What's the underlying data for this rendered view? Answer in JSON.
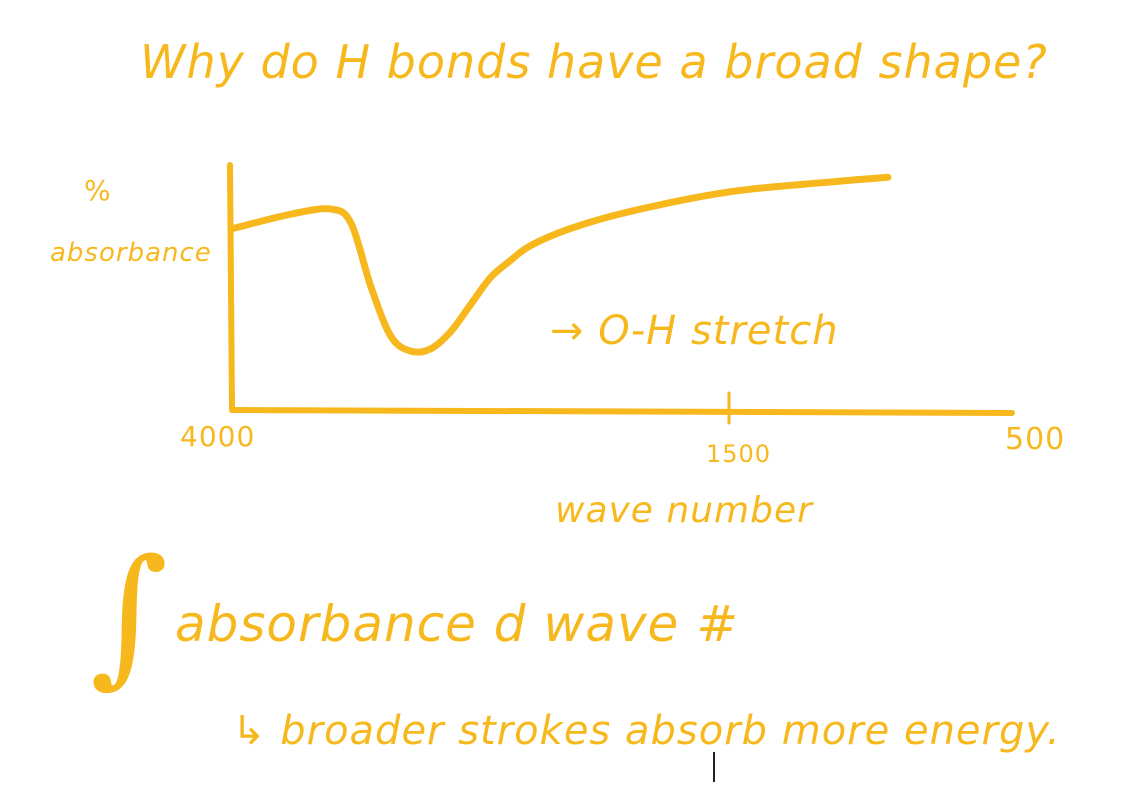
{
  "title": "Why do H bonds have a broad shape?",
  "ink_color": "#F7B81E",
  "chart_data": {
    "type": "line",
    "title": "Why do H bonds have a broad shape?",
    "ylabel_top": "%",
    "ylabel": "absorbance",
    "xlabel": "wave number",
    "x_ticks": [
      "4000",
      "1500",
      "500"
    ],
    "x_reversed": true,
    "annotation": "→ O-H stretch",
    "series": [
      {
        "x": [
          4000,
          3700,
          3500,
          3400,
          3300,
          3200,
          3100,
          3000,
          2900,
          2800,
          2700,
          2600,
          2500,
          2300,
          2000,
          1500,
          1000,
          700
        ],
        "y": [
          74,
          80,
          82,
          76,
          50,
          30,
          24,
          25,
          32,
          43,
          54,
          61,
          67,
          74,
          81,
          89,
          93,
          95
        ]
      }
    ]
  },
  "integral_text": "absorbance d wave #",
  "footnote": "↳ broader strokes absorb more energy."
}
